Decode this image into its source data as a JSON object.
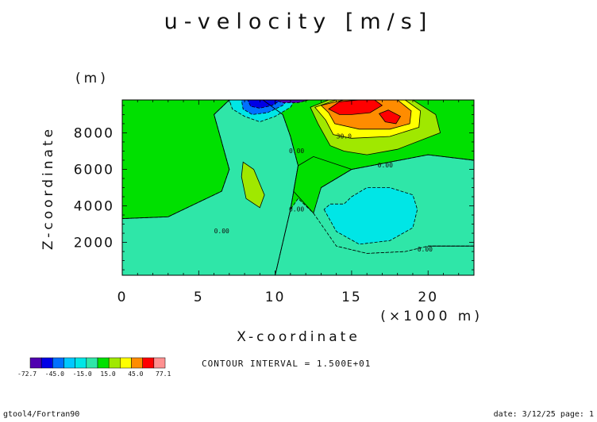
{
  "chart_data": {
    "type": "heatmap",
    "title": "u-velocity [m/s]",
    "xlabel": "X-coordinate",
    "xunit": "(×1000 m)",
    "ylabel": "Z-coordinate",
    "yunit": "(m)",
    "xlim": [
      0,
      23
    ],
    "ylim": [
      200,
      9800
    ],
    "x_ticks": [
      0,
      5,
      10,
      15,
      20
    ],
    "x_tick_labels": [
      "0",
      "5",
      "10",
      "15",
      "20"
    ],
    "y_ticks": [
      2000,
      4000,
      6000,
      8000
    ],
    "y_tick_labels": [
      "2000",
      "4000",
      "6000",
      "8000"
    ],
    "background_level_color": "#00e000",
    "filled_regions": [
      {
        "level": "-15.0 to 0",
        "color": "#2fe6a8",
        "points": [
          [
            0,
            200
          ],
          [
            10,
            200
          ],
          [
            11,
            3800
          ],
          [
            11.5,
            6200
          ],
          [
            11,
            7800
          ],
          [
            10.5,
            9000
          ],
          [
            9.2,
            9800
          ],
          [
            7,
            9800
          ],
          [
            6,
            9000
          ],
          [
            6.5,
            7500
          ],
          [
            7,
            6000
          ],
          [
            6.5,
            4800
          ],
          [
            5,
            4200
          ],
          [
            3,
            3400
          ],
          [
            0,
            3300
          ]
        ]
      },
      {
        "level": "-15.0 to 0",
        "color": "#2fe6a8",
        "points": [
          [
            10,
            200
          ],
          [
            23,
            200
          ],
          [
            23,
            1800
          ],
          [
            20,
            1800
          ],
          [
            18.5,
            1500
          ],
          [
            16,
            1400
          ],
          [
            14,
            1800
          ],
          [
            13.5,
            2600
          ],
          [
            12.5,
            3600
          ],
          [
            11.5,
            4400
          ],
          [
            11,
            3800
          ]
        ]
      },
      {
        "level": "-15.0 to 0",
        "color": "#2fe6a8",
        "points": [
          [
            12.5,
            3600
          ],
          [
            14,
            1800
          ],
          [
            16,
            1400
          ],
          [
            18.5,
            1500
          ],
          [
            20,
            1800
          ],
          [
            23,
            1800
          ],
          [
            23,
            6500
          ],
          [
            20,
            6800
          ],
          [
            17.5,
            6400
          ],
          [
            15,
            6000
          ],
          [
            13,
            5000
          ]
        ]
      },
      {
        "level": "0 to 15.0",
        "color": "#00e000",
        "points": [
          [
            11.5,
            6200
          ],
          [
            11.2,
            4800
          ],
          [
            12.5,
            3600
          ],
          [
            13,
            5000
          ],
          [
            15,
            6000
          ],
          [
            12.5,
            6700
          ]
        ]
      },
      {
        "level": "15.0 to 30.0",
        "color": "#a0e800",
        "points": [
          [
            7.9,
            6400
          ],
          [
            8.6,
            6000
          ],
          [
            9.3,
            4600
          ],
          [
            9.0,
            3900
          ],
          [
            8.1,
            4400
          ],
          [
            7.8,
            5600
          ]
        ]
      },
      {
        "level": "-30.0 to -15.0",
        "color": "#00e6e6",
        "points": [
          [
            13.2,
            3800
          ],
          [
            14,
            2600
          ],
          [
            15.5,
            1900
          ],
          [
            17.5,
            2100
          ],
          [
            19,
            2800
          ],
          [
            19.3,
            3800
          ],
          [
            19,
            4600
          ],
          [
            17.5,
            5000
          ],
          [
            16,
            5000
          ],
          [
            15,
            4500
          ],
          [
            14.5,
            4100
          ],
          [
            13.6,
            4100
          ]
        ]
      },
      {
        "level": "15.0 to 30.0",
        "color": "#a0e800",
        "points": [
          [
            12.3,
            9400
          ],
          [
            13.5,
            9800
          ],
          [
            19,
            9800
          ],
          [
            20.5,
            9000
          ],
          [
            20.8,
            8000
          ],
          [
            18,
            7100
          ],
          [
            16,
            6800
          ],
          [
            14.5,
            7000
          ],
          [
            13.6,
            7300
          ],
          [
            12.8,
            8500
          ]
        ]
      },
      {
        "level": "30.0 to 45.0",
        "color": "#ffff00",
        "points": [
          [
            12.6,
            9400
          ],
          [
            14,
            9800
          ],
          [
            18.5,
            9800
          ],
          [
            19.5,
            9200
          ],
          [
            19.4,
            8300
          ],
          [
            17.5,
            7800
          ],
          [
            15,
            7700
          ],
          [
            13.8,
            7900
          ],
          [
            13.3,
            8700
          ]
        ]
      },
      {
        "level": "45.0 to 60.0",
        "color": "#ff8c00",
        "points": [
          [
            13.0,
            9500
          ],
          [
            14.5,
            9800
          ],
          [
            18,
            9800
          ],
          [
            18.9,
            9200
          ],
          [
            18.8,
            8500
          ],
          [
            17.5,
            8200
          ],
          [
            15.5,
            8200
          ],
          [
            13.9,
            8500
          ],
          [
            13.5,
            9100
          ]
        ]
      },
      {
        "level": "60.0 to 75.0",
        "color": "#ff0000",
        "points": [
          [
            13.5,
            9300
          ],
          [
            14.2,
            9700
          ],
          [
            15.5,
            9800
          ],
          [
            16.5,
            9800
          ],
          [
            17,
            9500
          ],
          [
            16.2,
            9100
          ],
          [
            15,
            9000
          ],
          [
            14.2,
            9000
          ]
        ]
      },
      {
        "level": "60.0 to 75.0",
        "color": "#ff0000",
        "points": [
          [
            16.8,
            9050
          ],
          [
            17.4,
            9250
          ],
          [
            18.2,
            8900
          ],
          [
            17.9,
            8500
          ],
          [
            17.2,
            8600
          ]
        ]
      },
      {
        "level": "-30.0 to -15.0",
        "color": "#00e6e6",
        "points": [
          [
            7,
            9800
          ],
          [
            11.3,
            9800
          ],
          [
            11,
            9400
          ],
          [
            10,
            8900
          ],
          [
            9,
            8600
          ],
          [
            8,
            8900
          ],
          [
            7.2,
            9300
          ]
        ]
      },
      {
        "level": "-45.0 to -30.0",
        "color": "#0070ff",
        "points": [
          [
            7.8,
            9800
          ],
          [
            10.8,
            9800
          ],
          [
            10.5,
            9500
          ],
          [
            9.5,
            9100
          ],
          [
            8.5,
            9000
          ],
          [
            7.9,
            9300
          ]
        ]
      },
      {
        "level": "-60.0 to -45.0",
        "color": "#0000e6",
        "points": [
          [
            8.2,
            9800
          ],
          [
            10.4,
            9800
          ],
          [
            9.8,
            9500
          ],
          [
            9,
            9350
          ],
          [
            8.4,
            9450
          ]
        ]
      },
      {
        "level": "-72.7 to -60.0",
        "color": "#5000b0",
        "points": [
          [
            10.0,
            9800
          ],
          [
            12.2,
            9800
          ],
          [
            11.5,
            9650
          ],
          [
            10.5,
            9650
          ]
        ]
      }
    ],
    "contour_lines": [
      {
        "points": [
          [
            0,
            3300
          ],
          [
            3,
            3400
          ],
          [
            5,
            4200
          ],
          [
            6.5,
            4800
          ],
          [
            7,
            6000
          ],
          [
            6.5,
            7500
          ],
          [
            6,
            9000
          ],
          [
            7,
            9800
          ]
        ]
      },
      {
        "points": [
          [
            10,
            200
          ],
          [
            11,
            3800
          ],
          [
            11.5,
            6200
          ],
          [
            11,
            7800
          ],
          [
            10.5,
            9000
          ],
          [
            9.2,
            9800
          ]
        ]
      },
      {
        "points": [
          [
            20,
            1800
          ],
          [
            23,
            1800
          ]
        ]
      },
      {
        "points": [
          [
            13,
            5000
          ],
          [
            15,
            6000
          ],
          [
            17.5,
            6400
          ],
          [
            20,
            6800
          ],
          [
            23,
            6500
          ]
        ]
      }
    ],
    "contour_labels": [
      {
        "text": "0.00",
        "x": 6.5,
        "y": 2500
      },
      {
        "text": "0.00",
        "x": 11.4,
        "y": 3700
      },
      {
        "text": "0.00",
        "x": 11.4,
        "y": 6900
      },
      {
        "text": "0.00",
        "x": 17.2,
        "y": 6100
      },
      {
        "text": "0.00",
        "x": 19.8,
        "y": 1500
      },
      {
        "text": "30.0",
        "x": 14.5,
        "y": 7700
      }
    ],
    "colorbar": {
      "colors": [
        "#5000b0",
        "#0000e6",
        "#0070ff",
        "#00c8ff",
        "#00e6e6",
        "#2fe6a8",
        "#00e000",
        "#a0e800",
        "#ffff00",
        "#ff8c00",
        "#ff0000",
        "#ff9090"
      ],
      "labels": [
        "-72.7",
        "-45.0",
        "-15.0",
        "15.0",
        "45.0",
        "77.1"
      ]
    },
    "annotation": "CONTOUR INTERVAL = 1.500E+01"
  },
  "footer": {
    "left": "gtool4/Fortran90",
    "right": "date: 3/12/25 page: 1"
  }
}
